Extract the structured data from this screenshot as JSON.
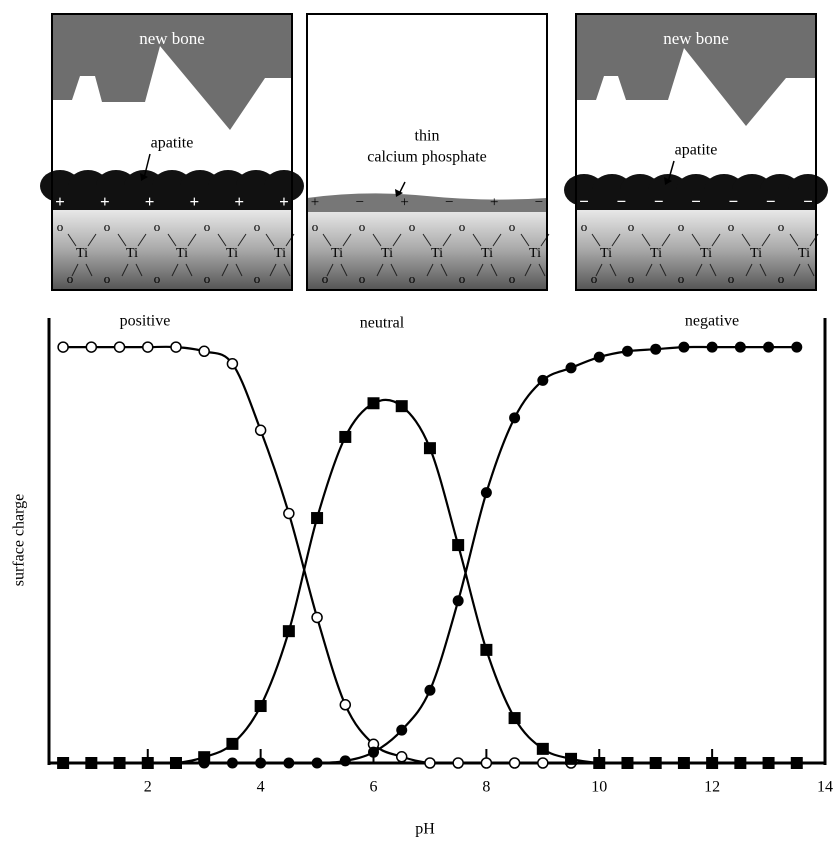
{
  "panels": [
    {
      "top_label": "new bone",
      "layer_label": [
        "apatite"
      ],
      "charges": [
        "+",
        "+",
        "+",
        "+",
        "+",
        "+"
      ],
      "ti": "Ti",
      "o": "o"
    },
    {
      "layer_label": [
        "thin",
        "calcium phosphate"
      ],
      "charges": [
        "+",
        "−",
        "+",
        "−",
        "+",
        "−"
      ],
      "ti": "Ti",
      "o": "o"
    },
    {
      "top_label": "new bone",
      "layer_label": [
        "apatite"
      ],
      "charges": [
        "−",
        "−",
        "−",
        "−",
        "−",
        "−",
        "−"
      ],
      "ti": "Ti",
      "o": "o"
    }
  ],
  "chart_data": {
    "type": "line",
    "xlabel": "pH",
    "ylabel": "surface charge",
    "annotations": [
      "positive",
      "neutral",
      "negative"
    ],
    "xlim": [
      0.25,
      14
    ],
    "xticks": [
      2,
      4,
      6,
      8,
      10,
      12,
      14
    ],
    "ylim": [
      0,
      1.07
    ],
    "series": [
      {
        "marker": "open-circle",
        "color": "#000000",
        "x": [
          0.5,
          1,
          1.5,
          2,
          2.5,
          3,
          3.5,
          4,
          4.5,
          5,
          5.5,
          6,
          6.5,
          7,
          7.5,
          8,
          8.5,
          9,
          9.5
        ],
        "values": [
          1,
          1,
          1,
          1,
          1,
          0.99,
          0.96,
          0.8,
          0.6,
          0.35,
          0.14,
          0.045,
          0.015,
          0,
          0,
          0,
          0,
          0,
          0
        ]
      },
      {
        "marker": "square",
        "color": "#000000",
        "x": [
          0.5,
          1,
          1.5,
          2,
          2.5,
          3,
          3.5,
          4,
          4.5,
          5,
          5.5,
          6,
          6.5,
          7,
          7.5,
          8,
          8.5,
          9,
          9.5,
          10,
          10.5,
          11,
          11.5,
          12,
          12.5,
          13,
          13.5
        ],
        "values": [
          0,
          0,
          0,
          0,
          0,
          0.014,
          0.046,
          0.137,
          0.317,
          0.589,
          0.784,
          0.865,
          0.858,
          0.757,
          0.524,
          0.272,
          0.108,
          0.034,
          0.01,
          0,
          0,
          0,
          0,
          0,
          0,
          0,
          0
        ]
      },
      {
        "marker": "filled-circle",
        "color": "#000000",
        "x": [
          0.5,
          1,
          1.5,
          2,
          2.5,
          3,
          3.5,
          4,
          4.5,
          5,
          5.5,
          6,
          6.5,
          7,
          7.5,
          8,
          8.5,
          9,
          9.5,
          10,
          10.5,
          11,
          11.5,
          12,
          12.5,
          13,
          13.5
        ],
        "values": [
          0,
          0,
          0,
          0,
          0,
          0,
          0,
          0,
          0,
          0,
          0.005,
          0.026,
          0.079,
          0.175,
          0.39,
          0.65,
          0.83,
          0.92,
          0.95,
          0.976,
          0.99,
          0.995,
          1,
          1,
          1,
          1,
          1
        ]
      }
    ]
  }
}
